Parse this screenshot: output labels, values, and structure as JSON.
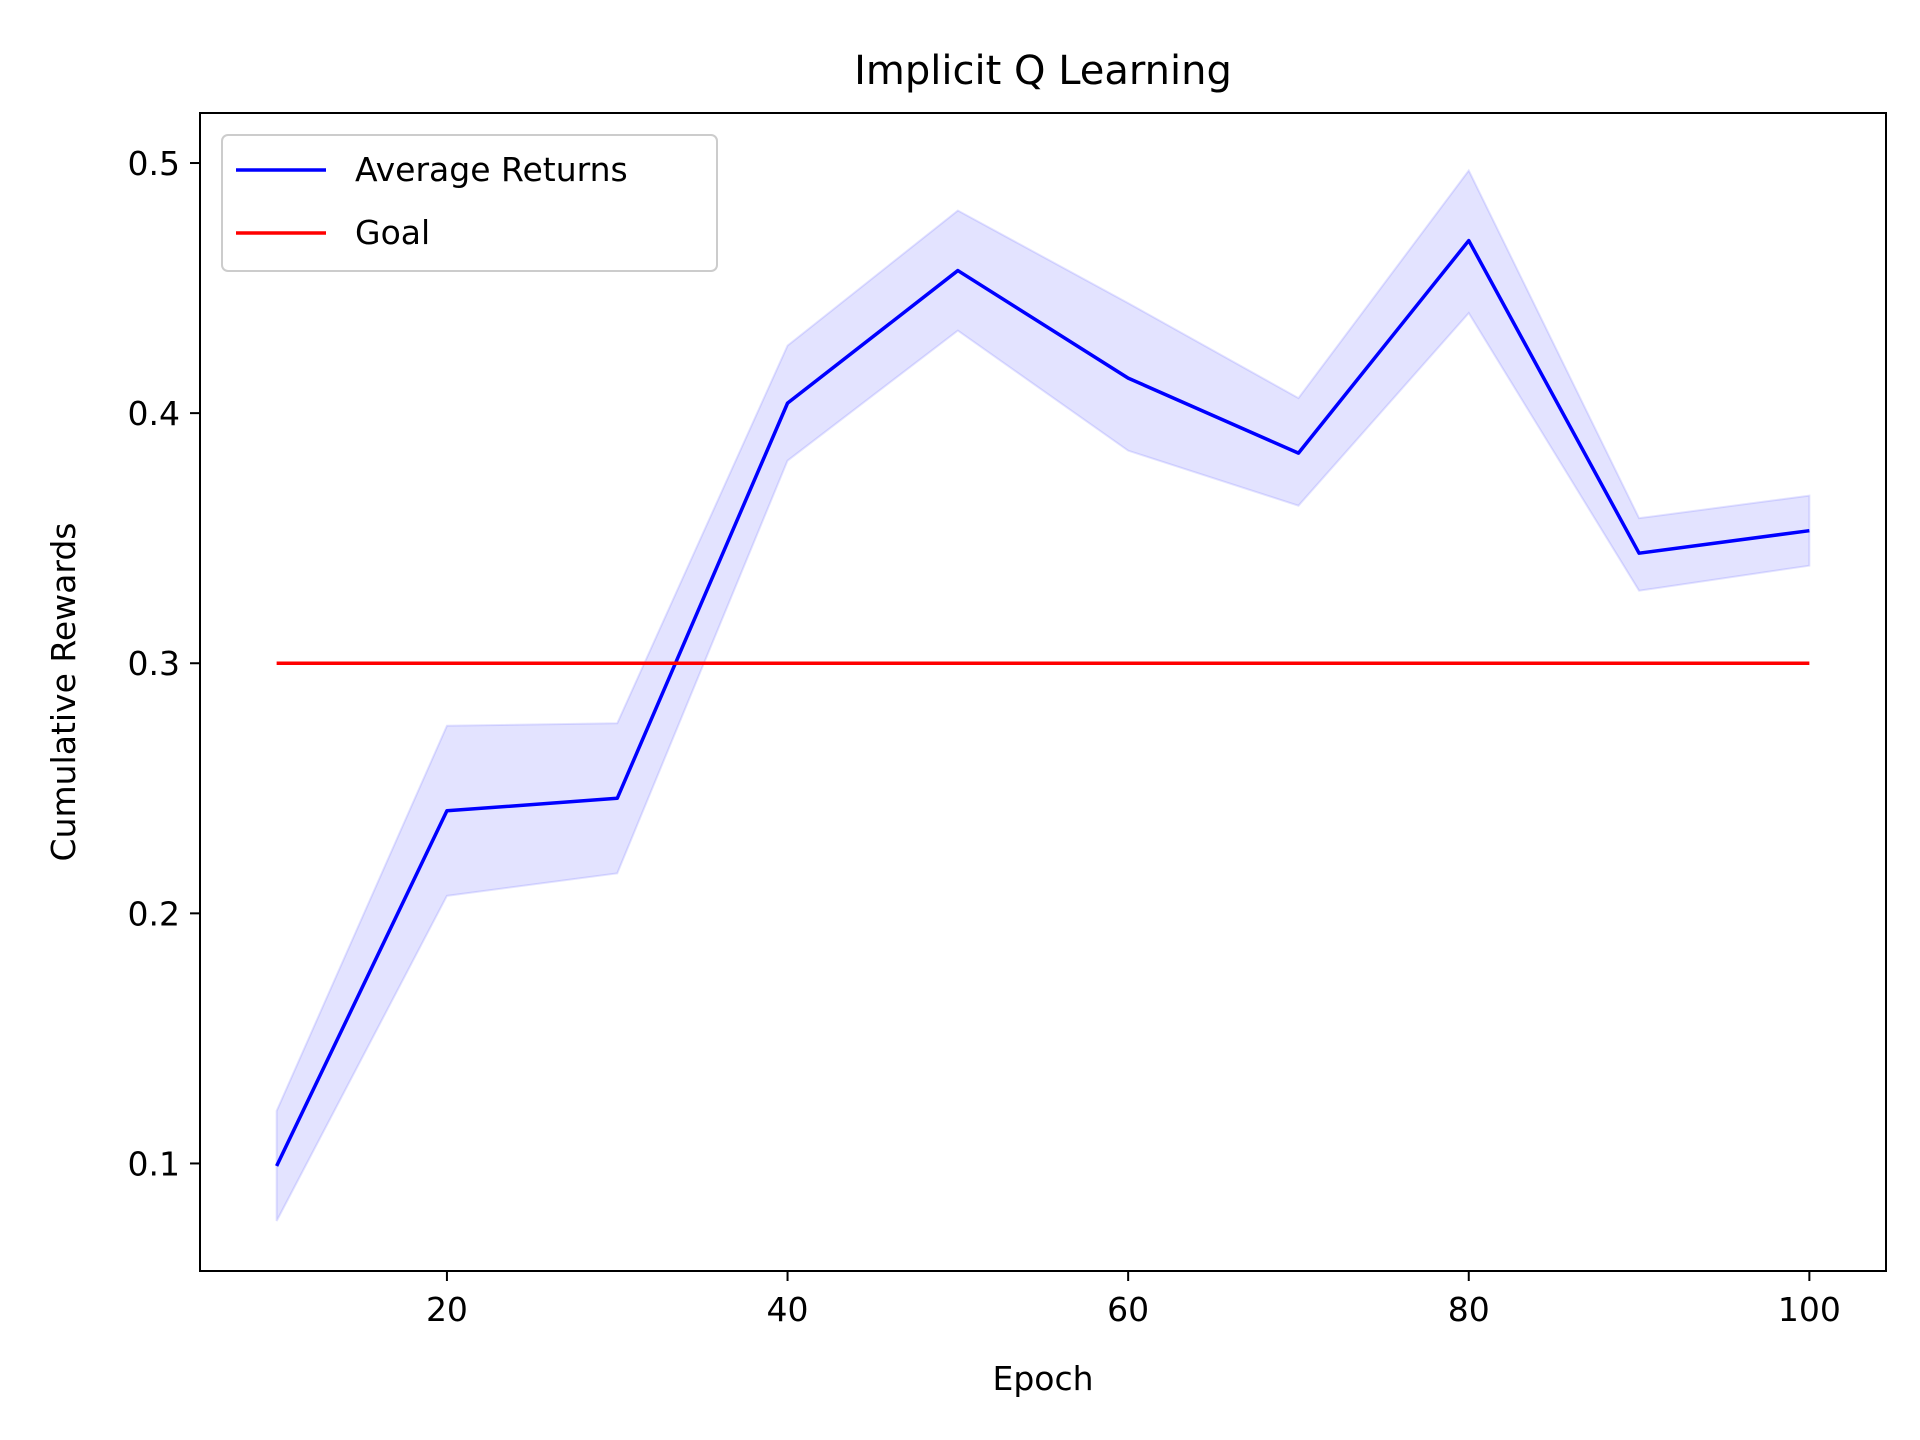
{
  "chart_data": {
    "type": "line",
    "title": "Implicit Q Learning",
    "xlabel": "Epoch",
    "ylabel": "Cumulative Rewards",
    "x": [
      10,
      20,
      30,
      40,
      50,
      60,
      70,
      80,
      90,
      100
    ],
    "xlim": [
      5.5,
      104.5
    ],
    "ylim": [
      0.057,
      0.52
    ],
    "xticks": [
      20,
      40,
      60,
      80,
      100
    ],
    "yticks": [
      0.1,
      0.2,
      0.3,
      0.4,
      0.5
    ],
    "xtick_labels": [
      "20",
      "40",
      "60",
      "80",
      "100"
    ],
    "ytick_labels": [
      "0.1",
      "0.2",
      "0.3",
      "0.4",
      "0.5"
    ],
    "grid": false,
    "legend_position": "top-left",
    "series": [
      {
        "name": "Average Returns",
        "color": "#0000ff",
        "values": [
          0.099,
          0.241,
          0.246,
          0.404,
          0.457,
          0.414,
          0.384,
          0.469,
          0.344,
          0.353
        ],
        "band_upper": [
          0.121,
          0.275,
          0.276,
          0.427,
          0.481,
          0.444,
          0.406,
          0.497,
          0.358,
          0.367
        ],
        "band_lower": [
          0.077,
          0.207,
          0.216,
          0.381,
          0.433,
          0.385,
          0.363,
          0.44,
          0.329,
          0.339
        ],
        "band_color": "#0000ff"
      },
      {
        "name": "Goal",
        "color": "#ff0000",
        "values": [
          0.3,
          0.3,
          0.3,
          0.3,
          0.3,
          0.3,
          0.3,
          0.3,
          0.3,
          0.3
        ]
      }
    ]
  }
}
